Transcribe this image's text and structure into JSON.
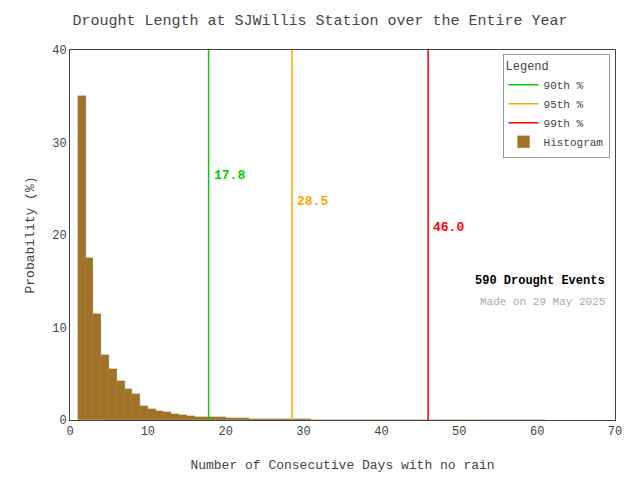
{
  "chart_data": {
    "type": "histogram",
    "title": "Drought Length at SJWillis Station over the Entire Year",
    "x_label": "Number of Consecutive Days with no rain",
    "y_label": "Probability (%)",
    "series_name": "Histogram",
    "color": "#A0722A",
    "bins": [
      1,
      2,
      3,
      4,
      5,
      6,
      7,
      8,
      9,
      10,
      11,
      12,
      13,
      14,
      15,
      16,
      17,
      18,
      19,
      20,
      21,
      22,
      23,
      24,
      25,
      26,
      27,
      28,
      29,
      30,
      31,
      32,
      33,
      34,
      35,
      36,
      37,
      38,
      39,
      40,
      41,
      42,
      43,
      44,
      45,
      46,
      47,
      48,
      49,
      50,
      51,
      52,
      53,
      54,
      55,
      56,
      57,
      58,
      59,
      60,
      61
    ],
    "values": [
      35.0,
      17.5,
      11.5,
      7.0,
      5.5,
      4.2,
      3.3,
      2.8,
      1.5,
      1.2,
      1.0,
      0.9,
      0.7,
      0.55,
      0.45,
      0.35,
      0.3,
      0.3,
      0.28,
      0.25,
      0.2,
      0.18,
      0.15,
      0.12,
      0.12,
      0.1,
      0.08,
      0.08,
      0.07,
      0.06,
      0.05,
      0.04,
      0.04,
      0.03,
      0.03,
      0.03,
      0.02,
      0.02,
      0.02,
      0.02,
      0.01,
      0.01,
      0.01,
      0.01,
      0.01,
      0.01,
      0.0,
      0.0,
      0.0,
      0.0,
      0.0,
      0.0,
      0.0,
      0.0,
      0.0,
      0.0,
      0.0,
      0.0,
      0.0,
      0.0
    ],
    "lines": [
      {
        "name": "90th %",
        "x": 17.8,
        "label": "17.8",
        "color": "#00CC00"
      },
      {
        "name": "95th %",
        "x": 28.5,
        "label": "28.5",
        "color": "#FFA500"
      },
      {
        "name": "99th %",
        "x": 46.0,
        "label": "46.0",
        "color": "#FF0000"
      }
    ],
    "annotations": [
      {
        "text": "590 Drought Events",
        "color": "#000000"
      },
      {
        "text": "Made on 29 May 2025",
        "color": "#AAAAAA"
      }
    ],
    "legend_title": "Legend",
    "legend": "upper right",
    "xlim": [
      0,
      70
    ],
    "xticks": [
      0,
      10,
      20,
      30,
      40,
      50,
      60,
      70
    ],
    "ylim": [
      0,
      40
    ],
    "yticks": [
      0,
      10,
      20,
      30,
      40
    ],
    "grid": false
  }
}
